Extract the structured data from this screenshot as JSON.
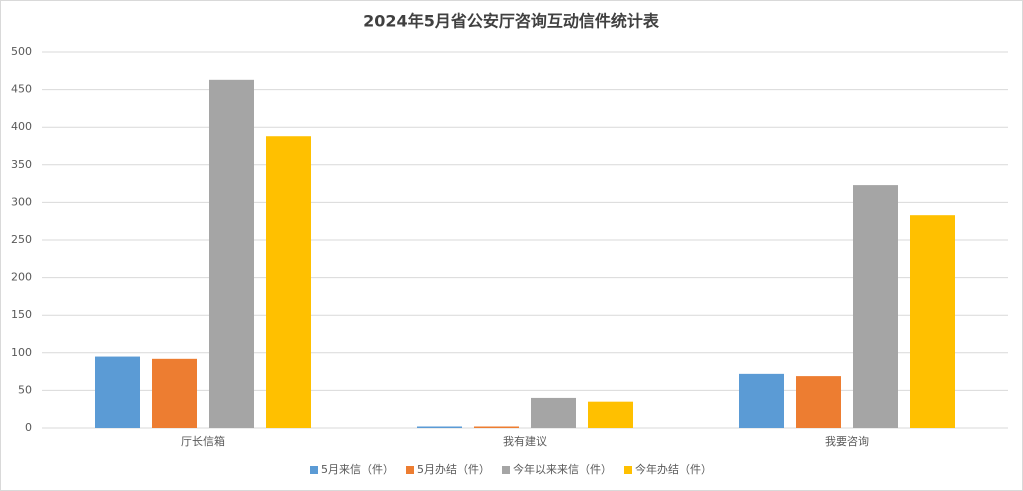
{
  "chart_data": {
    "type": "bar",
    "title": "2024年5月省公安厅咨询互动信件统计表",
    "categories": [
      "厅长信箱",
      "我有建议",
      "我要咨询"
    ],
    "series": [
      {
        "name": "5月来信（件）",
        "color": "#5b9bd5",
        "values": [
          95,
          2,
          72
        ]
      },
      {
        "name": "5月办结（件）",
        "color": "#ed7d31",
        "values": [
          92,
          2,
          69
        ]
      },
      {
        "name": "今年以来来信（件）",
        "color": "#a5a5a5",
        "values": [
          463,
          40,
          323
        ]
      },
      {
        "name": "今年办结（件）",
        "color": "#ffc000",
        "values": [
          388,
          35,
          283
        ]
      }
    ],
    "ylim": [
      0,
      500
    ],
    "yticks": [
      0,
      50,
      100,
      150,
      200,
      250,
      300,
      350,
      400,
      450,
      500
    ],
    "grid": true,
    "legend": "bottom"
  }
}
